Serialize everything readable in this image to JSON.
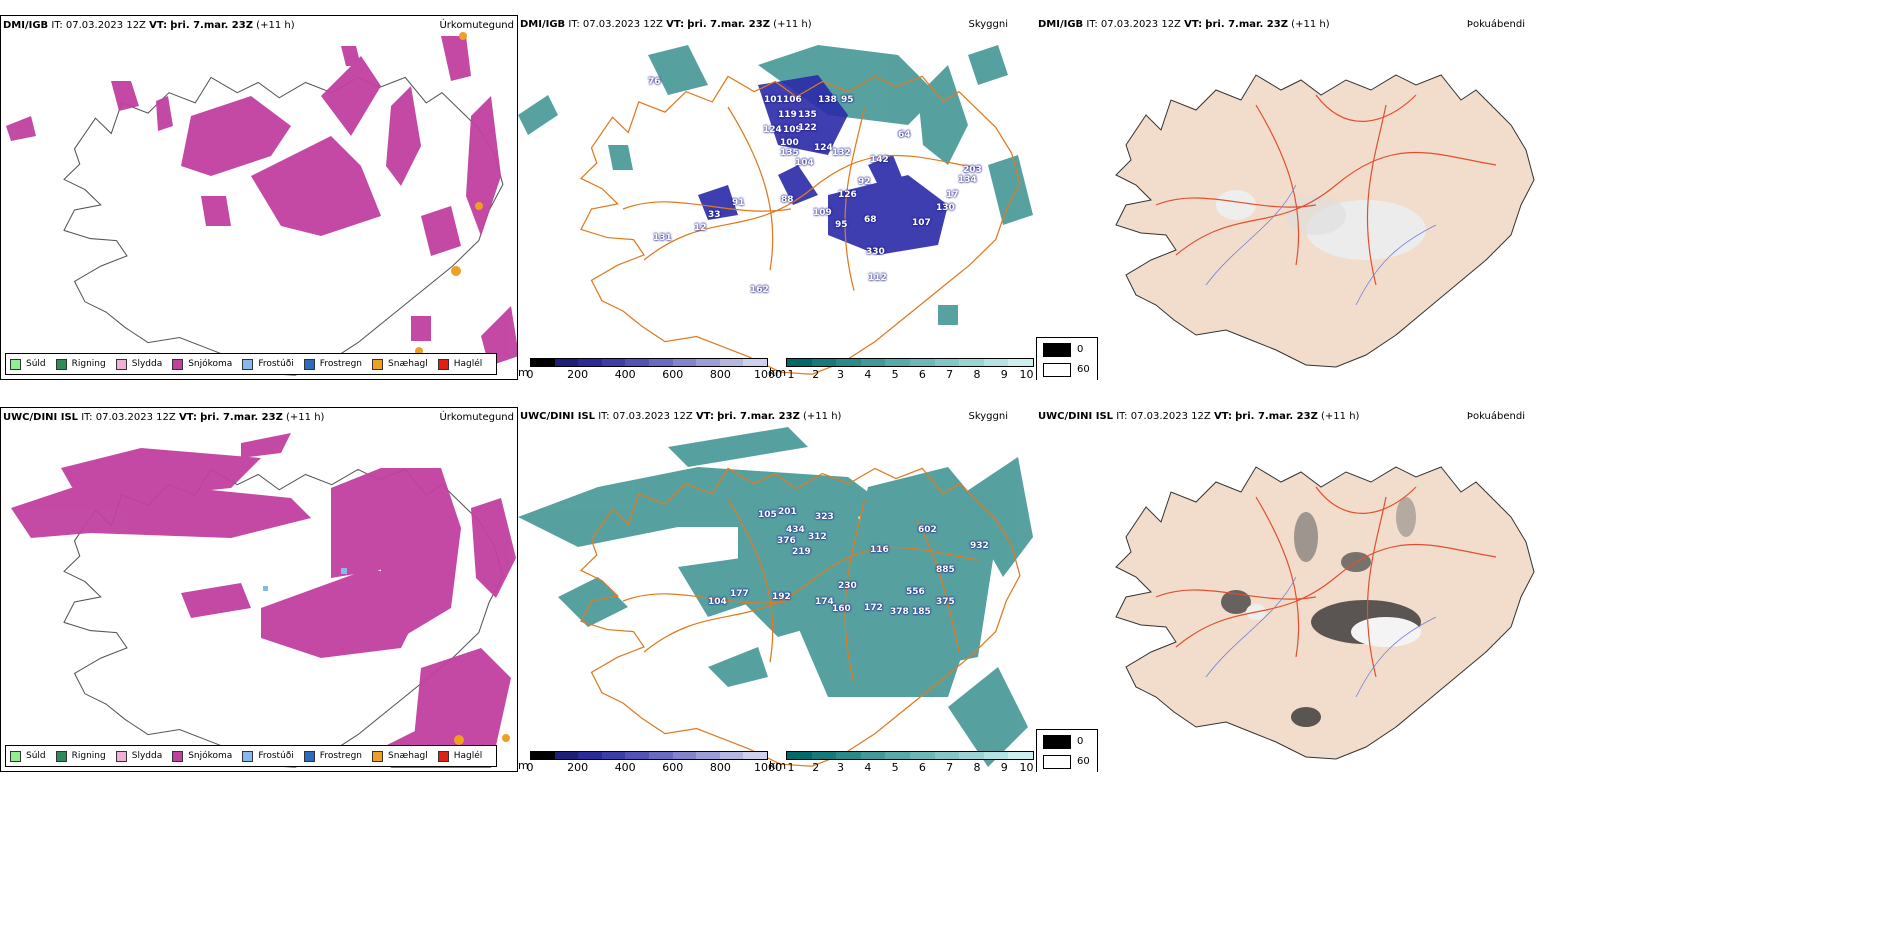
{
  "top": {
    "precip": {
      "model": "DMI/IGB",
      "it_label": "IT:",
      "it": "07.03.2023 12Z",
      "vt_label": "VT:",
      "vt": "þri. 7.mar. 23Z",
      "lead": "(+11 h)",
      "title": "Úrkomutegund"
    },
    "cloud": {
      "model": "DMI/IGB",
      "it_label": "IT:",
      "it": "07.03.2023 12Z",
      "vt_label": "VT:",
      "vt": "þri. 7.mar. 23Z",
      "lead": "(+11 h)",
      "title": "Skyggni"
    },
    "fog": {
      "model": "DMI/IGB",
      "it_label": "IT:",
      "it": "07.03.2023 12Z",
      "vt_label": "VT:",
      "vt": "þri. 7.mar. 23Z",
      "lead": "(+11 h)",
      "title": "Þokuábendi"
    },
    "vis_labels": [
      "76",
      "101",
      "106",
      "119",
      "135",
      "138",
      "95",
      "124",
      "109",
      "122",
      "100",
      "104",
      "135",
      "124",
      "132",
      "142",
      "92",
      "88",
      "91",
      "126",
      "109",
      "95",
      "68",
      "107",
      "130",
      "17",
      "134",
      "330",
      "112",
      "33",
      "12",
      "131",
      "162",
      "203",
      "64"
    ]
  },
  "bottom": {
    "precip": {
      "model": "UWC/DINI ISL",
      "it_label": "IT:",
      "it": "07.03.2023 12Z",
      "vt_label": "VT:",
      "vt": "þri. 7.mar. 23Z",
      "lead": "(+11 h)",
      "title": "Úrkomutegund"
    },
    "cloud": {
      "model": "UWC/DINI ISL",
      "it_label": "IT:",
      "it": "07.03.2023 12Z",
      "vt_label": "VT:",
      "vt": "þri. 7.mar. 23Z",
      "lead": "(+11 h)",
      "title": "Skyggni"
    },
    "fog": {
      "model": "UWC/DINI ISL",
      "it_label": "IT:",
      "it": "07.03.2023 12Z",
      "vt_label": "VT:",
      "vt": "þri. 7.mar. 23Z",
      "lead": "(+11 h)",
      "title": "Þokuábendi"
    },
    "vis_labels": [
      "105",
      "201",
      "323",
      "434",
      "312",
      "376",
      "219",
      "602",
      "932",
      "885",
      "116",
      "230",
      "177",
      "192",
      "174",
      "160",
      "172",
      "378",
      "185",
      "556",
      "375",
      "104"
    ]
  },
  "precip_legend": [
    {
      "label": "Súld",
      "color": "#90ee90"
    },
    {
      "label": "Rigning",
      "color": "#2e8b57"
    },
    {
      "label": "Slydda",
      "color": "#f0b0d8"
    },
    {
      "label": "Snjókoma",
      "color": "#c040a0"
    },
    {
      "label": "Frostúði",
      "color": "#87b8ee"
    },
    {
      "label": "Frostregn",
      "color": "#2a6cc0"
    },
    {
      "label": "Snæhagl",
      "color": "#f0a020"
    },
    {
      "label": "Haglél",
      "color": "#e02010"
    }
  ],
  "cloudbase_bar": {
    "unit": "m",
    "ticks": [
      "0",
      "200",
      "400",
      "600",
      "800",
      "1000"
    ],
    "colors": [
      "#000000",
      "#1e1e78",
      "#2a2a9a",
      "#3d3daa",
      "#5252b8",
      "#6a6ac2",
      "#8484cc",
      "#9c9cd6",
      "#b6b6e2",
      "#d0d0ee"
    ]
  },
  "visibility_bar": {
    "unit": "km",
    "ticks": [
      "1",
      "2",
      "3",
      "4",
      "5",
      "6",
      "7",
      "8",
      "9",
      "10"
    ],
    "colors": [
      "#006a6a",
      "#147a7a",
      "#2a8a8a",
      "#409a9a",
      "#56aaaa",
      "#6cb8b8",
      "#84c6c6",
      "#9cd4d4",
      "#b4e2e2",
      "#cceeee"
    ]
  },
  "fog_scale": {
    "values": [
      "0",
      "60"
    ]
  },
  "colors": {
    "snow": "#c040a0",
    "vis_teal": "#3a9090",
    "cloud_blue": "#2a2aa8",
    "roads": "#e07a20",
    "land_fog": "#f2dccb",
    "fog_roads": "#e05030"
  }
}
